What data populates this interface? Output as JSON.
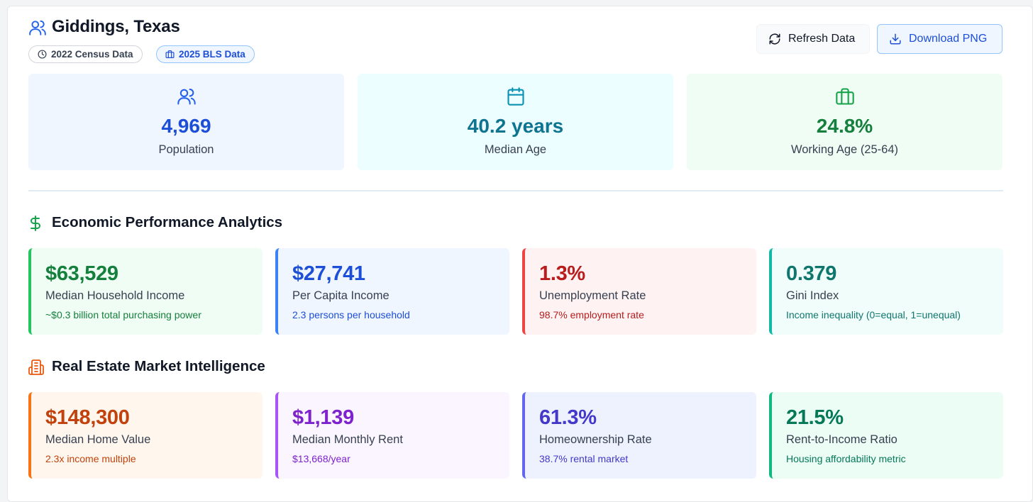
{
  "header": {
    "title": "Giddings, Texas",
    "badges": [
      {
        "label": "2022 Census Data",
        "icon": "clock-icon"
      },
      {
        "label": "2025 BLS Data",
        "icon": "briefcase-icon"
      }
    ],
    "buttons": {
      "refresh_label": "Refresh Data",
      "download_label": "Download PNG"
    }
  },
  "stats": [
    {
      "value": "4,969",
      "label": "Population",
      "icon": "users-icon",
      "color": "#1d4ed8",
      "bg": "#eff6ff"
    },
    {
      "value": "40.2 years",
      "label": "Median Age",
      "icon": "calendar-icon",
      "color": "#0e7490",
      "bg": "#ecfeff"
    },
    {
      "value": "24.8%",
      "label": "Working Age (25-64)",
      "icon": "briefcase-icon",
      "color": "#15803d",
      "bg": "#f0fdf4"
    }
  ],
  "economic": {
    "title": "Economic Performance Analytics",
    "icon": "dollar-icon",
    "cards": [
      {
        "value": "$63,529",
        "label": "Median Household Income",
        "sub": "~$0.3 billion total purchasing power",
        "color": "#15803d",
        "border": "#22c55e",
        "bg": "#f0fdf4"
      },
      {
        "value": "$27,741",
        "label": "Per Capita Income",
        "sub": "2.3 persons per household",
        "color": "#1d4ed8",
        "border": "#3b82f6",
        "bg": "#eff6ff"
      },
      {
        "value": "1.3%",
        "label": "Unemployment Rate",
        "sub": "98.7% employment rate",
        "color": "#b91c1c",
        "border": "#ef4444",
        "bg": "#fef2f2"
      },
      {
        "value": "0.379",
        "label": "Gini Index",
        "sub": "Income inequality (0=equal, 1=unequal)",
        "color": "#0f766e",
        "border": "#14b8a6",
        "bg": "#f0fdfa"
      }
    ]
  },
  "realestate": {
    "title": "Real Estate Market Intelligence",
    "icon": "building-icon",
    "cards": [
      {
        "value": "$148,300",
        "label": "Median Home Value",
        "sub": "2.3x income multiple",
        "color": "#c2410c",
        "border": "#f97316",
        "bg": "#fff7ed"
      },
      {
        "value": "$1,139",
        "label": "Median Monthly Rent",
        "sub": "$13,668/year",
        "color": "#7e22ce",
        "border": "#a855f7",
        "bg": "#faf5ff"
      },
      {
        "value": "61.3%",
        "label": "Homeownership Rate",
        "sub": "38.7% rental market",
        "color": "#4338ca",
        "border": "#6366f1",
        "bg": "#eef2ff"
      },
      {
        "value": "21.5%",
        "label": "Rent-to-Income Ratio",
        "sub": "Housing affordability metric",
        "color": "#047857",
        "border": "#10b981",
        "bg": "#ecfdf5"
      }
    ]
  }
}
